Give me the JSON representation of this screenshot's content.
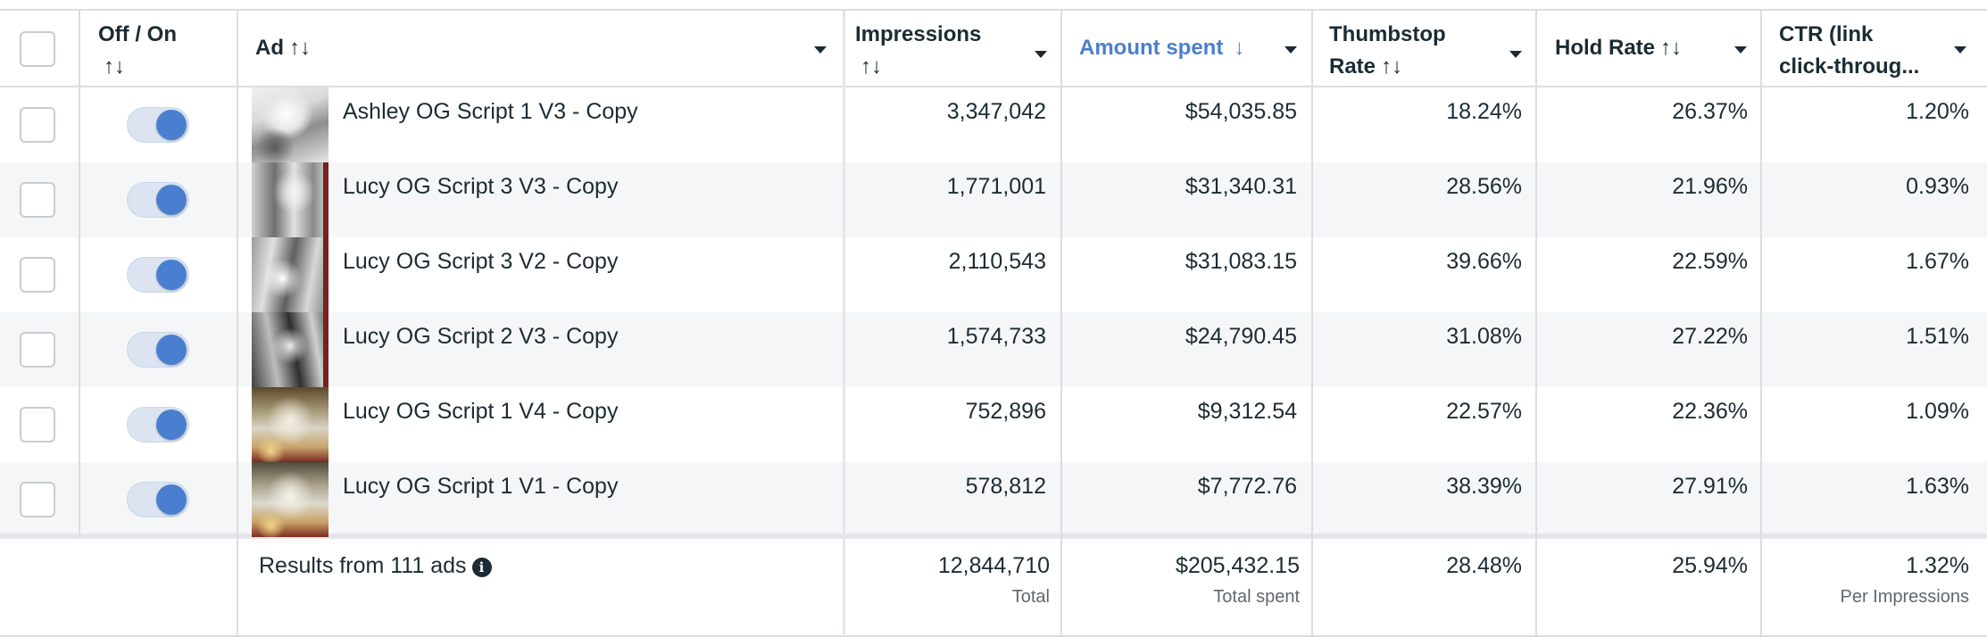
{
  "headers": {
    "off_on": "Off / On",
    "off_on_sort": "↑↓",
    "ad": "Ad",
    "ad_sort": "↑↓",
    "impressions": "Impressions",
    "impressions_sort": "↑↓",
    "amount_spent": "Amount spent",
    "amount_spent_sort": "↓",
    "thumbstop_line1": "Thumbstop",
    "thumbstop_line2": "Rate",
    "thumbstop_sort": "↑↓",
    "hold_rate": "Hold Rate",
    "hold_rate_sort": "↑↓",
    "ctr_line1": "CTR (link",
    "ctr_line2": "click-throug..."
  },
  "rows": [
    {
      "name": "Ashley OG Script 1 V3 - Copy",
      "impressions": "3,347,042",
      "amount_spent": "$54,035.85",
      "thumbstop": "18.24%",
      "hold_rate": "26.37%",
      "ctr": "1.20%",
      "thumb_icon": "hands-photo-thumbnail"
    },
    {
      "name": "Lucy OG Script 3 V3 - Copy",
      "impressions": "1,771,001",
      "amount_spent": "$31,340.31",
      "thumbstop": "28.56%",
      "hold_rate": "21.96%",
      "ctr": "0.93%",
      "thumb_icon": "collage-photo-thumbnail"
    },
    {
      "name": "Lucy OG Script 3 V2 - Copy",
      "impressions": "2,110,543",
      "amount_spent": "$31,083.15",
      "thumbstop": "39.66%",
      "hold_rate": "22.59%",
      "ctr": "1.67%",
      "thumb_icon": "collage-photo-thumbnail"
    },
    {
      "name": "Lucy OG Script 2 V3 - Copy",
      "impressions": "1,574,733",
      "amount_spent": "$24,790.45",
      "thumbstop": "31.08%",
      "hold_rate": "27.22%",
      "ctr": "1.51%",
      "thumb_icon": "collage-photo-thumbnail"
    },
    {
      "name": "Lucy OG Script 1 V4 - Copy",
      "impressions": "752,896",
      "amount_spent": "$9,312.54",
      "thumbstop": "22.57%",
      "hold_rate": "22.36%",
      "ctr": "1.09%",
      "thumb_icon": "spooky-photo-thumbnail"
    },
    {
      "name": "Lucy OG Script 1 V1 - Copy",
      "impressions": "578,812",
      "amount_spent": "$7,772.76",
      "thumbstop": "38.39%",
      "hold_rate": "27.91%",
      "ctr": "1.63%",
      "thumb_icon": "spooky-photo-thumbnail"
    }
  ],
  "summary": {
    "results_label": "Results from 111 ads",
    "impressions": "12,844,710",
    "impressions_sub": "Total",
    "amount_spent": "$205,432.15",
    "amount_spent_sub": "Total spent",
    "thumbstop": "28.48%",
    "hold_rate": "25.94%",
    "ctr": "1.32%",
    "ctr_sub": "Per Impressions"
  },
  "colors": {
    "accent": "#4a7fd0",
    "text": "#1c2b33",
    "alt_row": "#f5f6f7",
    "border": "#dadde1"
  }
}
